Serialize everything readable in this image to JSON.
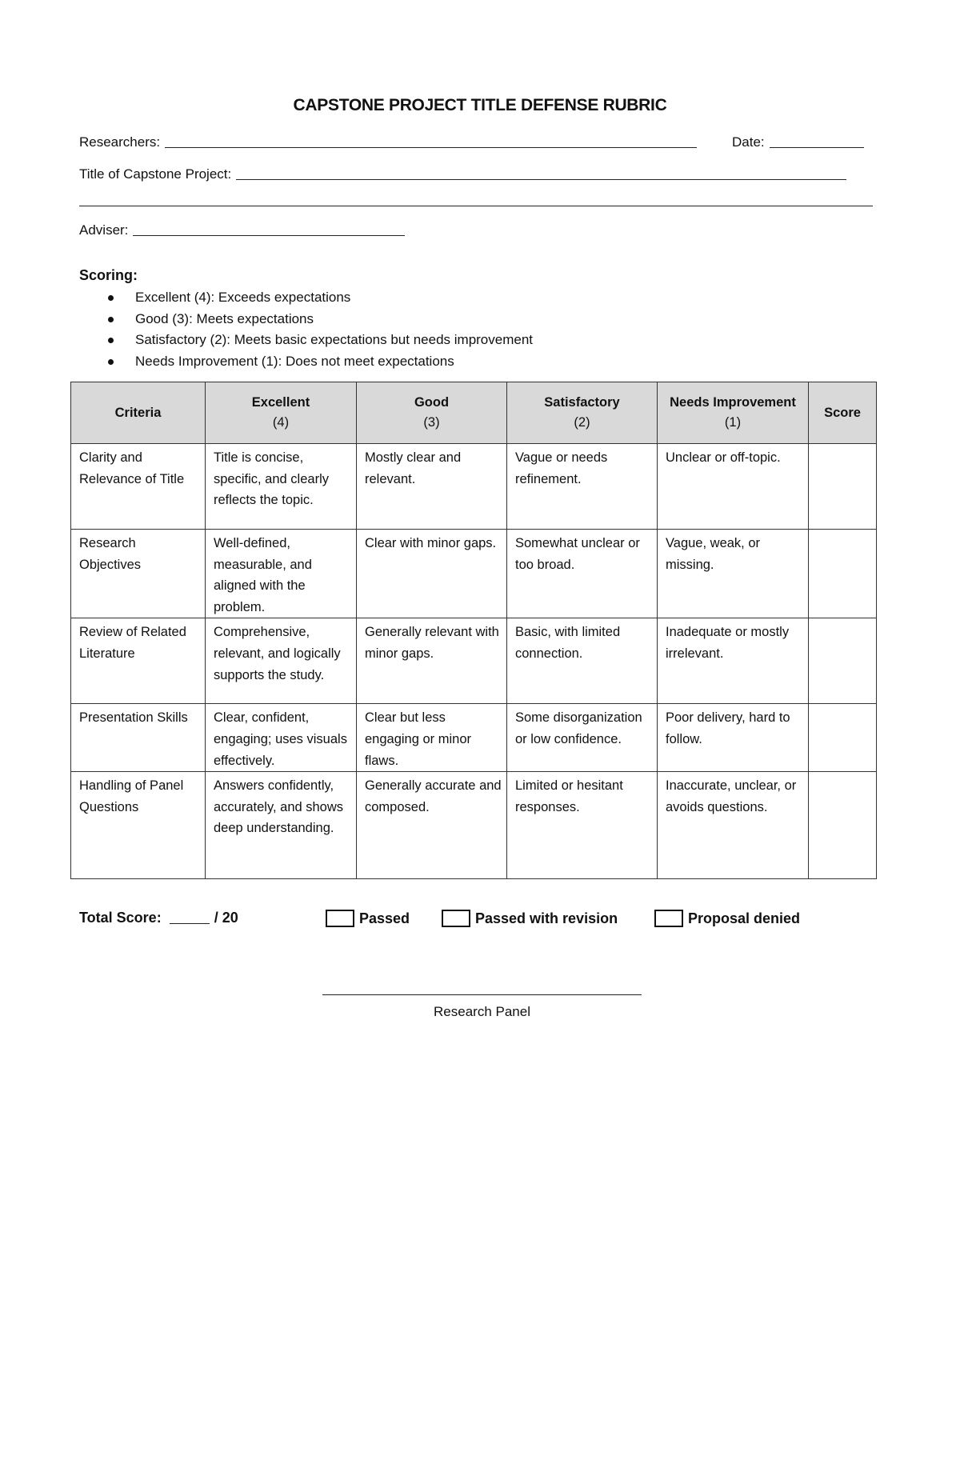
{
  "title": "CAPSTONE PROJECT TITLE DEFENSE RUBRIC",
  "fields": {
    "researchers": "Researchers:",
    "date": "Date:",
    "project_title": "Title of Capstone Project:",
    "adviser": "Adviser:"
  },
  "scoring": {
    "heading": "Scoring:",
    "items": [
      "Excellent (4): Exceeds expectations",
      "Good (3): Meets expectations",
      "Satisfactory (2): Meets basic expectations but needs improvement",
      "Needs Improvement (1): Does not meet expectations"
    ]
  },
  "table": {
    "headers": [
      {
        "label": "Criteria",
        "sub": ""
      },
      {
        "label": "Excellent",
        "sub": "(4)"
      },
      {
        "label": "Good",
        "sub": "(3)"
      },
      {
        "label": "Satisfactory",
        "sub": "(2)"
      },
      {
        "label": "Needs Improvement",
        "sub": "(1)"
      },
      {
        "label": "Score",
        "sub": ""
      }
    ],
    "rows": [
      [
        "Clarity and Relevance of Title",
        "Title is concise, specific, and clearly reflects the topic.",
        "Mostly clear and relevant.",
        "Vague or needs refinement.",
        "Unclear or off-topic.",
        ""
      ],
      [
        "Research Objectives",
        "Well-defined, measurable, and aligned with the problem.",
        "Clear with minor gaps.",
        "Somewhat unclear or too broad.",
        "Vague, weak, or missing.",
        ""
      ],
      [
        "Review of Related Literature",
        "Comprehensive, relevant, and logically supports the study.",
        "Generally relevant with minor gaps.",
        "Basic, with limited connection.",
        "Inadequate or mostly irrelevant.",
        ""
      ],
      [
        "Presentation Skills",
        "Clear, confident, engaging; uses visuals effectively.",
        "Clear but less engaging or minor flaws.",
        "Some disorganization or low confidence.",
        "Poor delivery, hard to follow.",
        ""
      ],
      [
        "Handling of Panel Questions",
        "Answers confidently, accurately, and shows deep understanding.",
        "Generally accurate and composed.",
        "Limited or hesitant responses.",
        "Inaccurate, unclear, or avoids questions.",
        ""
      ]
    ]
  },
  "footer": {
    "total_label": "Total Score:",
    "total_max": "/ 20",
    "options": [
      "Passed",
      "Passed with revision",
      "Proposal denied"
    ]
  },
  "signature": {
    "label": "Research Panel"
  }
}
